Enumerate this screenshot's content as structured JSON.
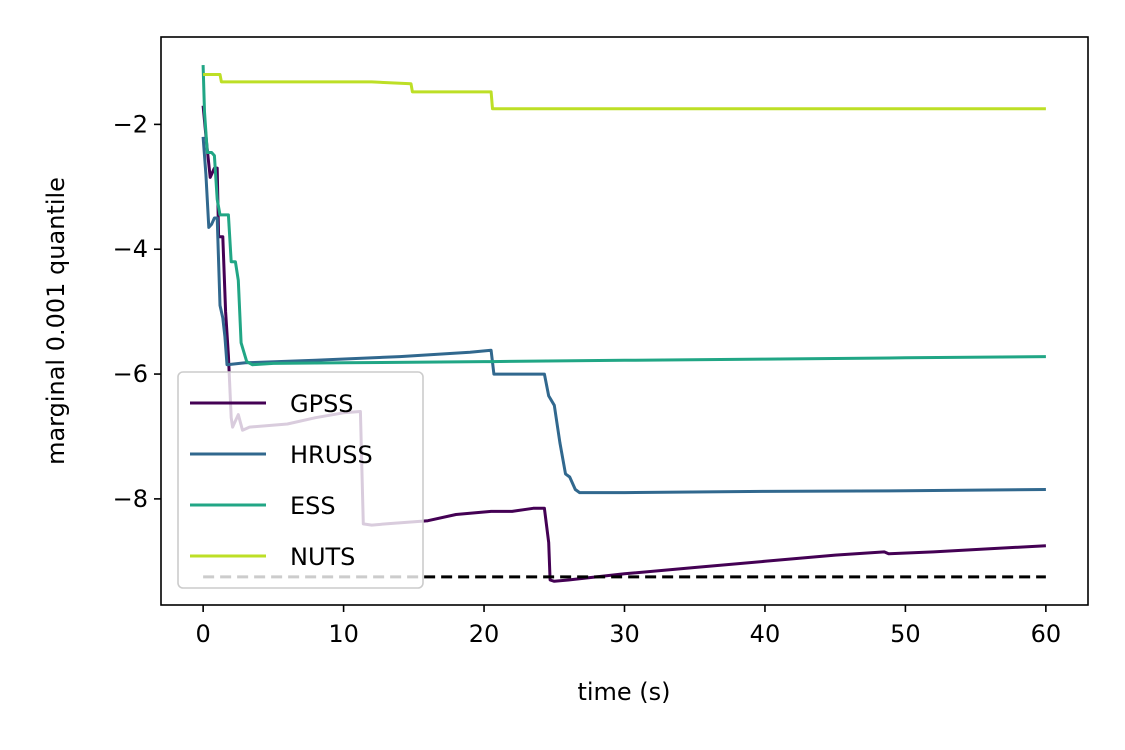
{
  "chart_data": {
    "type": "line",
    "title": "",
    "xlabel": "time (s)",
    "ylabel": "marginal 0.001 quantile",
    "xlim": [
      -3,
      63
    ],
    "ylim": [
      -9.7,
      -0.6
    ],
    "xticks": [
      0,
      10,
      20,
      30,
      40,
      50,
      60
    ],
    "xtick_labels": [
      "0",
      "10",
      "20",
      "30",
      "40",
      "50",
      "60"
    ],
    "yticks": [
      -2,
      -4,
      -6,
      -8
    ],
    "ytick_labels": [
      "−2",
      "−4",
      "−6",
      "−8"
    ],
    "grid": false,
    "legend_position": "lower-left",
    "reference": {
      "style": "dashed",
      "color": "#000000",
      "y": -9.25,
      "x": [
        0,
        60
      ]
    },
    "series": [
      {
        "name": "GPSS",
        "color": "#440154",
        "x": [
          0,
          0.25,
          0.5,
          0.8,
          1.0,
          1.1,
          1.4,
          1.6,
          1.8,
          2.0,
          2.1,
          2.3,
          2.5,
          2.8,
          3.3,
          6,
          8,
          10,
          11.2,
          11.4,
          12,
          13,
          16,
          18,
          20.5,
          20.7,
          22,
          23.5,
          24.3,
          24.6,
          24.7,
          25,
          26,
          30,
          35,
          40,
          45,
          48.5,
          48.8,
          52,
          56,
          60
        ],
        "y": [
          -1.7,
          -2.3,
          -2.85,
          -2.7,
          -2.7,
          -3.8,
          -3.8,
          -5.0,
          -5.7,
          -6.7,
          -6.85,
          -6.75,
          -6.65,
          -6.9,
          -6.85,
          -6.8,
          -6.7,
          -6.62,
          -6.6,
          -8.4,
          -8.42,
          -8.4,
          -8.35,
          -8.25,
          -8.2,
          -8.2,
          -8.2,
          -8.15,
          -8.15,
          -8.7,
          -9.3,
          -9.32,
          -9.3,
          -9.2,
          -9.1,
          -9.0,
          -8.9,
          -8.85,
          -8.88,
          -8.85,
          -8.8,
          -8.75
        ]
      },
      {
        "name": "HRUSS",
        "color": "#31688e",
        "x": [
          0,
          0.2,
          0.4,
          0.6,
          0.8,
          1.0,
          1.2,
          1.4,
          1.55,
          1.7,
          3,
          8,
          14,
          19,
          20.5,
          20.7,
          24.3,
          24.6,
          25,
          25.4,
          25.8,
          26.1,
          26.5,
          26.8,
          30,
          40,
          50,
          60
        ],
        "y": [
          -2.2,
          -2.8,
          -3.65,
          -3.6,
          -3.5,
          -3.5,
          -4.9,
          -5.1,
          -5.4,
          -5.85,
          -5.82,
          -5.78,
          -5.72,
          -5.65,
          -5.62,
          -6.0,
          -6.0,
          -6.35,
          -6.5,
          -7.1,
          -7.6,
          -7.65,
          -7.85,
          -7.9,
          -7.9,
          -7.88,
          -7.87,
          -7.85
        ]
      },
      {
        "name": "ESS",
        "color": "#21a685",
        "x": [
          0,
          0.1,
          0.3,
          0.6,
          0.8,
          1.0,
          1.2,
          1.8,
          2.0,
          2.3,
          2.5,
          2.7,
          3.1,
          3.5,
          5,
          10,
          20,
          20.5,
          30,
          40,
          50,
          60
        ],
        "y": [
          -1.05,
          -1.8,
          -2.45,
          -2.45,
          -2.5,
          -3.2,
          -3.45,
          -3.45,
          -4.2,
          -4.2,
          -4.5,
          -5.5,
          -5.8,
          -5.85,
          -5.83,
          -5.82,
          -5.8,
          -5.8,
          -5.78,
          -5.76,
          -5.74,
          -5.72
        ]
      },
      {
        "name": "NUTS",
        "color": "#bddf26",
        "x": [
          0,
          1.2,
          1.3,
          12,
          14.8,
          14.9,
          20.5,
          20.6,
          30,
          40,
          50,
          60
        ],
        "y": [
          -1.2,
          -1.2,
          -1.32,
          -1.32,
          -1.35,
          -1.48,
          -1.48,
          -1.75,
          -1.75,
          -1.75,
          -1.75,
          -1.75
        ]
      }
    ]
  }
}
